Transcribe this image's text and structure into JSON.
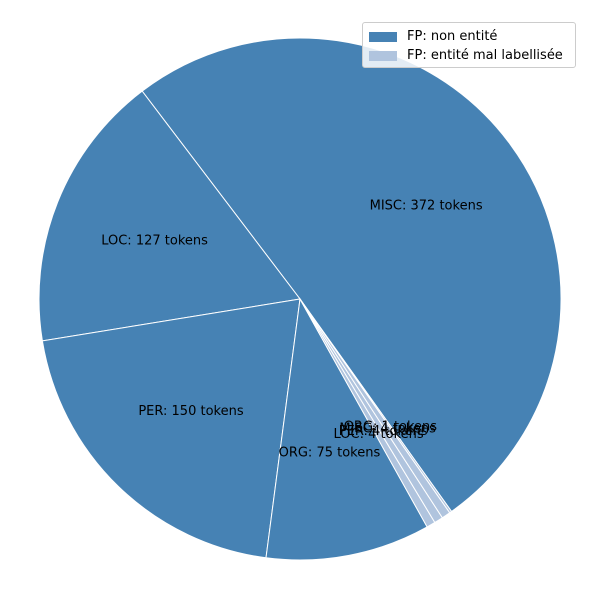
{
  "chart_data": {
    "type": "pie",
    "title": "",
    "start_angle_deg": 305.5,
    "direction": "counterclockwise",
    "slices": [
      {
        "label": "MISC: 372 tokens",
        "category": "MISC",
        "value": 372,
        "group": 0
      },
      {
        "label": "LOC: 127 tokens",
        "category": "LOC",
        "value": 127,
        "group": 0
      },
      {
        "label": "PER: 150 tokens",
        "category": "PER",
        "value": 150,
        "group": 0
      },
      {
        "label": "ORG: 75 tokens",
        "category": "ORG",
        "value": 75,
        "group": 0
      },
      {
        "label": "LOC: 4 tokens",
        "category": "LOC",
        "value": 4,
        "group": 1
      },
      {
        "label": "PER: 4 tokens",
        "category": "PER",
        "value": 4,
        "group": 1
      },
      {
        "label": "MISC: 4 tokens",
        "category": "MISC",
        "value": 4,
        "group": 1
      },
      {
        "label": "ORG: 1 tokens",
        "category": "ORG",
        "value": 1,
        "group": 1
      }
    ],
    "legend": [
      {
        "label": "FP: non entité",
        "color": "#4682b4"
      },
      {
        "label": "FP: entité mal labellisée",
        "color": "#b0c4de"
      }
    ],
    "legend_position": "top-right",
    "edge_color": "#ffffff"
  }
}
